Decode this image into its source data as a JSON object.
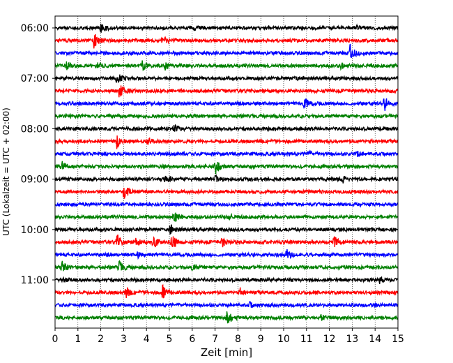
{
  "chart_data": {
    "type": "line",
    "title": "",
    "xlabel": "Zeit  [min]",
    "ylabel": "UTC (Lokalzeit = UTC + 02:00)",
    "xlim": [
      0,
      15
    ],
    "x_ticks": [
      "0",
      "1",
      "2",
      "3",
      "4",
      "5",
      "6",
      "7",
      "8",
      "9",
      "10",
      "11",
      "12",
      "13",
      "14",
      "15"
    ],
    "y_tick_labels": [
      "06:00",
      "07:00",
      "08:00",
      "09:00",
      "10:00",
      "11:00"
    ],
    "y_tick_rows": [
      0,
      4,
      8,
      12,
      16,
      20
    ],
    "grid": "vertical dotted",
    "legend": "none",
    "colors": [
      "#000000",
      "#ff0000",
      "#0000ff",
      "#008000"
    ],
    "trace_minutes": 15,
    "series": [
      {
        "start": "06:00",
        "color": "#000000",
        "events": [
          {
            "t": 2.0,
            "amp": 1.2
          },
          {
            "t": 6.0,
            "amp": 0.5
          },
          {
            "t": 13.1,
            "amp": 0.6
          }
        ]
      },
      {
        "start": "06:15",
        "color": "#ff0000",
        "events": [
          {
            "t": 1.7,
            "amp": 1.6
          },
          {
            "t": 4.7,
            "amp": 1.0
          }
        ]
      },
      {
        "start": "06:30",
        "color": "#0000ff",
        "events": [
          {
            "t": 12.9,
            "amp": 1.8
          }
        ]
      },
      {
        "start": "06:45",
        "color": "#008000",
        "events": [
          {
            "t": 0.5,
            "amp": 0.7
          },
          {
            "t": 1.8,
            "amp": 0.6
          },
          {
            "t": 3.8,
            "amp": 1.1
          },
          {
            "t": 4.8,
            "amp": 1.0
          },
          {
            "t": 12.5,
            "amp": 0.6
          }
        ]
      },
      {
        "start": "07:00",
        "color": "#000000",
        "events": [
          {
            "t": 2.7,
            "amp": 1.5
          },
          {
            "t": 10.5,
            "amp": 0.5
          }
        ]
      },
      {
        "start": "07:15",
        "color": "#ff0000",
        "events": [
          {
            "t": 2.8,
            "amp": 1.6
          }
        ]
      },
      {
        "start": "07:30",
        "color": "#0000ff",
        "events": [
          {
            "t": 10.9,
            "amp": 1.3
          },
          {
            "t": 14.4,
            "amp": 1.6
          }
        ]
      },
      {
        "start": "07:45",
        "color": "#008000",
        "events": []
      },
      {
        "start": "08:00",
        "color": "#000000",
        "events": [
          {
            "t": 5.2,
            "amp": 1.0
          }
        ]
      },
      {
        "start": "08:15",
        "color": "#ff0000",
        "events": [
          {
            "t": 2.7,
            "amp": 1.4
          },
          {
            "t": 4.0,
            "amp": 0.9
          }
        ]
      },
      {
        "start": "08:30",
        "color": "#0000ff",
        "events": [
          {
            "t": 11.0,
            "amp": 0.6
          },
          {
            "t": 13.2,
            "amp": 0.5
          }
        ]
      },
      {
        "start": "08:45",
        "color": "#008000",
        "events": [
          {
            "t": 0.3,
            "amp": 1.0
          },
          {
            "t": 7.0,
            "amp": 1.8
          }
        ]
      },
      {
        "start": "09:00",
        "color": "#000000",
        "events": [
          {
            "t": 4.8,
            "amp": 1.0
          },
          {
            "t": 7.0,
            "amp": 0.7
          },
          {
            "t": 12.6,
            "amp": 0.6
          }
        ]
      },
      {
        "start": "09:15",
        "color": "#ff0000",
        "events": [
          {
            "t": 3.0,
            "amp": 1.6
          }
        ]
      },
      {
        "start": "09:30",
        "color": "#0000ff",
        "events": []
      },
      {
        "start": "09:45",
        "color": "#008000",
        "events": [
          {
            "t": 5.2,
            "amp": 1.7
          },
          {
            "t": 7.6,
            "amp": 0.5
          }
        ]
      },
      {
        "start": "10:00",
        "color": "#000000",
        "events": [
          {
            "t": 5.0,
            "amp": 1.2
          }
        ]
      },
      {
        "start": "10:15",
        "color": "#ff0000",
        "events": [
          {
            "t": 2.7,
            "amp": 1.8
          },
          {
            "t": 3.5,
            "amp": 0.8
          },
          {
            "t": 4.3,
            "amp": 1.6
          },
          {
            "t": 5.1,
            "amp": 2.0
          },
          {
            "t": 7.3,
            "amp": 1.0
          },
          {
            "t": 12.2,
            "amp": 1.2
          }
        ]
      },
      {
        "start": "10:30",
        "color": "#0000ff",
        "events": [
          {
            "t": 10.1,
            "amp": 1.3
          },
          {
            "t": 3.6,
            "amp": 0.6
          }
        ]
      },
      {
        "start": "10:45",
        "color": "#008000",
        "events": [
          {
            "t": 0.3,
            "amp": 1.2
          },
          {
            "t": 2.8,
            "amp": 1.3
          },
          {
            "t": 6.0,
            "amp": 0.6
          }
        ]
      },
      {
        "start": "11:00",
        "color": "#000000",
        "events": [
          {
            "t": 14.2,
            "amp": 0.8
          },
          {
            "t": 0.4,
            "amp": 0.5
          }
        ]
      },
      {
        "start": "11:15",
        "color": "#ff0000",
        "events": [
          {
            "t": 3.1,
            "amp": 1.0
          },
          {
            "t": 4.7,
            "amp": 1.5
          },
          {
            "t": 8.1,
            "amp": 0.8
          }
        ]
      },
      {
        "start": "11:30",
        "color": "#0000ff",
        "events": [
          {
            "t": 8.5,
            "amp": 0.5
          }
        ]
      },
      {
        "start": "11:45",
        "color": "#008000",
        "events": [
          {
            "t": 7.5,
            "amp": 1.9
          },
          {
            "t": 11.6,
            "amp": 0.7
          }
        ]
      }
    ]
  }
}
